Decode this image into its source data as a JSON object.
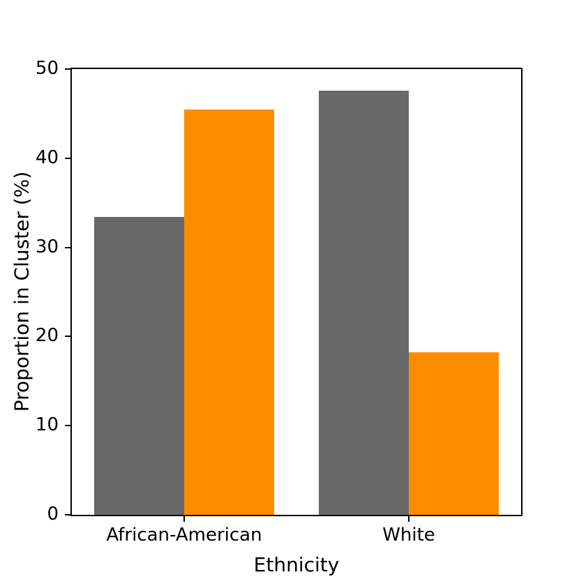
{
  "figure": {
    "background": "#ffffff",
    "frame_color": "#000000",
    "text_color": "#000000"
  },
  "chart_data": {
    "type": "bar",
    "title": "",
    "xlabel": "Ethnicity",
    "ylabel": "Proportion in Cluster (%)",
    "categories": [
      "African-American",
      "White"
    ],
    "series": [
      {
        "name": "gray-series",
        "color": "#686868",
        "values": [
          33.4,
          47.6
        ]
      },
      {
        "name": "orange-series",
        "color": "#FF8C00",
        "values": [
          45.5,
          18.2
        ]
      }
    ],
    "ylim": [
      0,
      50
    ],
    "yticks": [
      0,
      10,
      20,
      30,
      40,
      50
    ],
    "grid": false,
    "legend": "none"
  }
}
